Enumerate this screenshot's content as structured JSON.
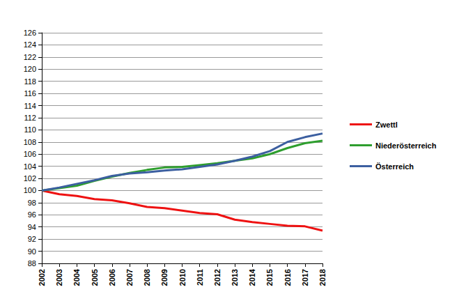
{
  "chart_data": {
    "type": "line",
    "categories": [
      "2002",
      "2003",
      "2004",
      "2005",
      "2006",
      "2007",
      "2008",
      "2009",
      "2010",
      "2011",
      "2012",
      "2013",
      "2014",
      "2015",
      "2016",
      "2017",
      "2018"
    ],
    "series": [
      {
        "name": "Zwettl",
        "color": "#ee1111",
        "values": [
          100,
          99.4,
          99.1,
          98.6,
          98.4,
          97.9,
          97.3,
          97.1,
          96.7,
          96.3,
          96.1,
          95.2,
          94.8,
          94.5,
          94.2,
          94.1,
          93.4
        ]
      },
      {
        "name": "Niederösterreich",
        "color": "#2e9e2e",
        "values": [
          100,
          100.4,
          100.8,
          101.6,
          102.3,
          102.9,
          103.4,
          103.8,
          103.9,
          104.2,
          104.5,
          104.9,
          105.3,
          106.0,
          107.0,
          107.8,
          108.2
        ]
      },
      {
        "name": "Österreich",
        "color": "#3c5fa0",
        "values": [
          100,
          100.5,
          101.1,
          101.7,
          102.4,
          102.8,
          103.0,
          103.3,
          103.5,
          103.9,
          104.3,
          104.9,
          105.6,
          106.5,
          108.0,
          108.8,
          109.4
        ]
      }
    ],
    "ylim": [
      88,
      126
    ],
    "yticks": [
      88,
      90,
      92,
      94,
      96,
      98,
      100,
      102,
      104,
      106,
      108,
      110,
      112,
      114,
      116,
      118,
      120,
      122,
      124,
      126
    ],
    "grid": true,
    "legend": "right"
  }
}
